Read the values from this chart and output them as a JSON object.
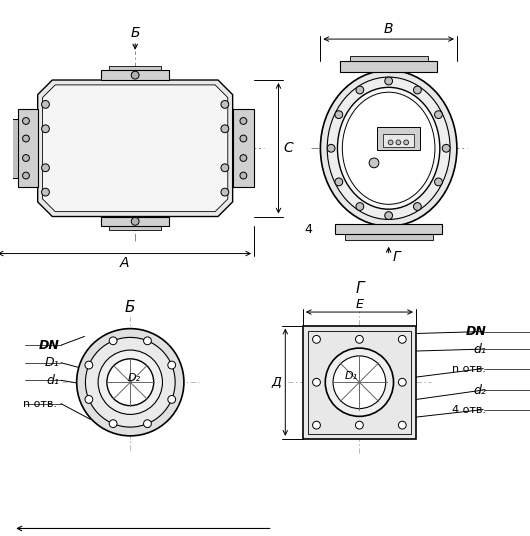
{
  "bg_color": "#ffffff",
  "lc": "#000000",
  "gc": "#aaaaaa",
  "labels": {
    "arrow_B_label": "Б",
    "dim_A": "A",
    "dim_B": "В",
    "dim_C": "C",
    "arrow_G_label": "Г",
    "dim_E": "E",
    "dim_D": "Д",
    "num_4_label": "4",
    "view_B": "Б",
    "view_G": "Г",
    "DN": "DN",
    "D1": "D₁",
    "d1": "d₁",
    "n_otv": "n отв.",
    "D2": "D₂",
    "d2": "d₂",
    "otv4": "4 отв."
  }
}
